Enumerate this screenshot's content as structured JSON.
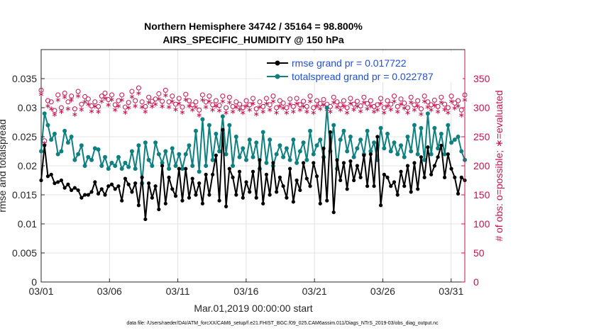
{
  "chart_data": {
    "type": "line",
    "title_line1": "Northern Hemisphere 34742 / 35164 = 98.800%",
    "title_line2": "AIRS_SPECIFIC_HUMIDITY @ 150 hPa",
    "xlabel": "Mar.01,2019 00:00:00 start",
    "ylabel_left": "rmse and totalspread",
    "ylabel_right": "# of obs: o=possible; ∗=evaluated",
    "footnote": "data file: /Users/raeder/DAI/ATM_forcXX/CAM6_setup/f.e21.FHIST_BGC.f09_025.CAM6assim.011/Diags_NTrS_2019-03/obs_diag_output.nc",
    "x_ticks": [
      "03/01",
      "03/06",
      "03/11",
      "03/16",
      "03/21",
      "03/26",
      "03/31"
    ],
    "x_tick_values": [
      1,
      6,
      11,
      16,
      21,
      26,
      31
    ],
    "xlim": [
      1,
      32
    ],
    "y_left_ticks": [
      "0",
      "0.005",
      "0.01",
      "0.015",
      "0.02",
      "0.025",
      "0.03",
      "0.035"
    ],
    "y_left_values": [
      0,
      0.005,
      0.01,
      0.015,
      0.02,
      0.025,
      0.03,
      0.035
    ],
    "ylim_left": [
      0,
      0.04
    ],
    "y_right_ticks": [
      "0",
      "50",
      "100",
      "150",
      "200",
      "250",
      "300",
      "350"
    ],
    "y_right_values": [
      0,
      50,
      100,
      150,
      200,
      250,
      300,
      350
    ],
    "ylim_right": [
      0,
      400
    ],
    "legend": {
      "position": "top-right",
      "entries": [
        "rmse grand pr = 0.017722",
        "totalspread grand pr = 0.022787"
      ]
    },
    "colors": {
      "rmse": "#000000",
      "totalspread": "#0f8080",
      "obs": "#c8104f",
      "legend_text": "#1f4fd6",
      "grid": "#dcdcdc"
    },
    "series": [
      {
        "name": "rmse",
        "values": [
          0.0175,
          0.0235,
          0.0182,
          0.0185,
          0.017,
          0.0172,
          0.0175,
          0.0162,
          0.0168,
          0.0158,
          0.0162,
          0.0158,
          0.0145,
          0.015,
          0.015,
          0.0155,
          0.0172,
          0.0152,
          0.016,
          0.015,
          0.0165,
          0.0168,
          0.016,
          0.0165,
          0.014,
          0.0178,
          0.0168,
          0.0155,
          0.017,
          0.0132,
          0.018,
          0.0108,
          0.017,
          0.0145,
          0.0165,
          0.0125,
          0.02,
          0.0135,
          0.018,
          0.016,
          0.0148,
          0.0195,
          0.014,
          0.0195,
          0.0145,
          0.0178,
          0.015,
          0.017,
          0.0135,
          0.0185,
          0.015,
          0.0185,
          0.0218,
          0.014,
          0.0262,
          0.013,
          0.0195,
          0.018,
          0.015,
          0.019,
          0.0145,
          0.0172,
          0.0155,
          0.019,
          0.0145,
          0.021,
          0.0135,
          0.0185,
          0.015,
          0.0205,
          0.0155,
          0.018,
          0.0165,
          0.0145,
          0.0195,
          0.0138,
          0.0175,
          0.0158,
          0.0205,
          0.0178,
          0.0165,
          0.0205,
          0.0182,
          0.0135,
          0.023,
          0.014,
          0.0258,
          0.012,
          0.021,
          0.0175,
          0.0205,
          0.016,
          0.0208,
          0.0175,
          0.02,
          0.018,
          0.0218,
          0.0165,
          0.022,
          0.0165,
          0.025,
          0.0132,
          0.0185,
          0.018,
          0.0165,
          0.0172,
          0.015,
          0.019,
          0.0165,
          0.02,
          0.0155,
          0.0205,
          0.016,
          0.0215,
          0.018,
          0.0232,
          0.0185,
          0.02,
          0.0215,
          0.0235,
          0.018,
          0.022,
          0.0195,
          0.018,
          0.0152,
          0.018,
          0.0175
        ]
      },
      {
        "name": "totalspread",
        "values": [
          0.0225,
          0.029,
          0.027,
          0.0245,
          0.0255,
          0.022,
          0.0225,
          0.026,
          0.024,
          0.025,
          0.021,
          0.022,
          0.0235,
          0.02,
          0.0215,
          0.021,
          0.023,
          0.0228,
          0.02,
          0.0215,
          0.0195,
          0.0205,
          0.02,
          0.0215,
          0.0195,
          0.0205,
          0.0198,
          0.0225,
          0.0195,
          0.0235,
          0.017,
          0.024,
          0.021,
          0.02,
          0.024,
          0.022,
          0.0205,
          0.0225,
          0.0195,
          0.023,
          0.02,
          0.022,
          0.0195,
          0.022,
          0.0235,
          0.02,
          0.026,
          0.019,
          0.028,
          0.02,
          0.027,
          0.021,
          0.0255,
          0.0225,
          0.0285,
          0.022,
          0.027,
          0.02,
          0.025,
          0.0215,
          0.023,
          0.021,
          0.0245,
          0.0215,
          0.024,
          0.0195,
          0.0258,
          0.0205,
          0.0245,
          0.02,
          0.022,
          0.0235,
          0.0215,
          0.023,
          0.021,
          0.0245,
          0.0205,
          0.0225,
          0.024,
          0.021,
          0.026,
          0.022,
          0.0235,
          0.0245,
          0.0215,
          0.03,
          0.0225,
          0.027,
          0.0195,
          0.0245,
          0.026,
          0.0225,
          0.025,
          0.0215,
          0.023,
          0.0245,
          0.022,
          0.026,
          0.0225,
          0.024,
          0.021,
          0.0265,
          0.023,
          0.0255,
          0.0225,
          0.024,
          0.022,
          0.0235,
          0.0215,
          0.025,
          0.0225,
          0.027,
          0.022,
          0.0265,
          0.021,
          0.029,
          0.022,
          0.0265,
          0.023,
          0.0255,
          0.022,
          0.027,
          0.024,
          0.0245,
          0.025,
          0.0225,
          0.021
        ]
      }
    ],
    "obs_possible": [
      330,
      243,
      312,
      310,
      295,
      322,
      300,
      325,
      310,
      320,
      298,
      328,
      306,
      319,
      315,
      303,
      310,
      302,
      320,
      325,
      314,
      322,
      305,
      312,
      322,
      301,
      309,
      328,
      312,
      334,
      310,
      302,
      318,
      311,
      315,
      324,
      311,
      330,
      310,
      320,
      306,
      316,
      301,
      323,
      312,
      305,
      310,
      296,
      322,
      310,
      320,
      305,
      312,
      304,
      320,
      300,
      318,
      302,
      310,
      306,
      300,
      312,
      305,
      316,
      298,
      310,
      302,
      316,
      305,
      320,
      300,
      312,
      308,
      300,
      315,
      302,
      316,
      305,
      311,
      302,
      320,
      300,
      312,
      307,
      314,
      306,
      302,
      318,
      310,
      305,
      312,
      300,
      316,
      306,
      311,
      303,
      318,
      307,
      312,
      302,
      305,
      316,
      300,
      312,
      306,
      320,
      302,
      315,
      308,
      300,
      318,
      305,
      312,
      298,
      320,
      310,
      305,
      313,
      302,
      318,
      306,
      300,
      320,
      308,
      312,
      296,
      322
    ],
    "obs_evaluated": [
      325,
      240,
      305,
      300,
      290,
      315,
      295,
      320,
      300,
      315,
      290,
      322,
      299,
      312,
      308,
      296,
      304,
      295,
      313,
      318,
      307,
      316,
      298,
      305,
      315,
      294,
      302,
      321,
      305,
      327,
      303,
      295,
      311,
      304,
      308,
      317,
      304,
      323,
      303,
      313,
      299,
      309,
      294,
      316,
      305,
      298,
      303,
      289,
      315,
      303,
      313,
      298,
      305,
      297,
      313,
      293,
      311,
      295,
      303,
      299,
      293,
      305,
      298,
      309,
      291,
      303,
      295,
      309,
      298,
      313,
      293,
      305,
      301,
      293,
      308,
      295,
      309,
      298,
      304,
      295,
      313,
      293,
      305,
      300,
      307,
      299,
      295,
      311,
      303,
      298,
      305,
      293,
      309,
      299,
      304,
      296,
      311,
      300,
      305,
      295,
      298,
      309,
      293,
      305,
      299,
      313,
      295,
      308,
      301,
      293,
      311,
      298,
      305,
      291,
      313,
      303,
      298,
      306,
      295,
      311,
      299,
      293,
      313,
      301,
      305,
      289,
      315
    ]
  }
}
